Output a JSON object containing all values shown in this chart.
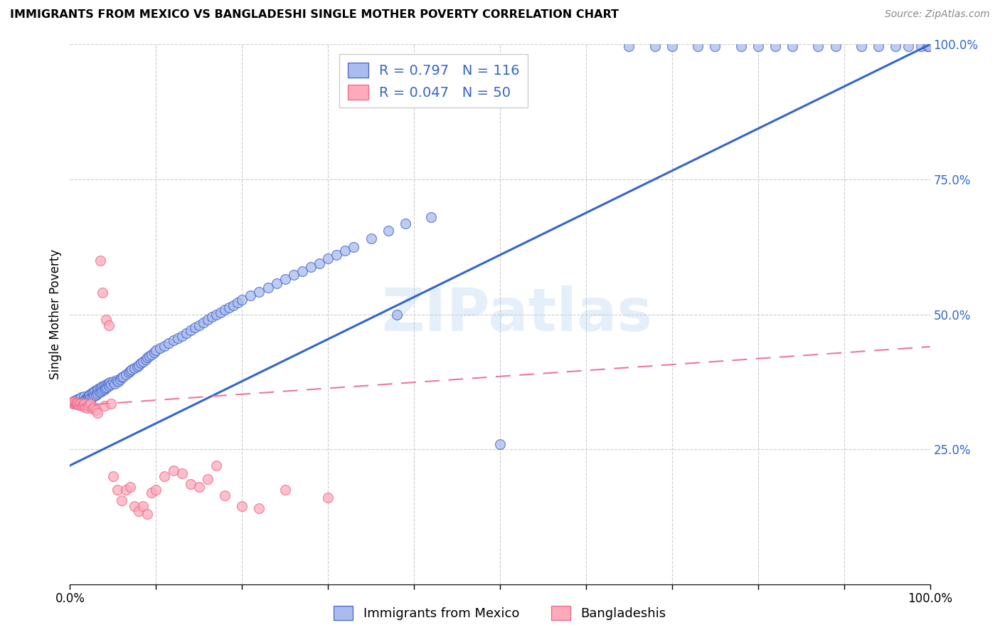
{
  "title": "IMMIGRANTS FROM MEXICO VS BANGLADESHI SINGLE MOTHER POVERTY CORRELATION CHART",
  "source": "Source: ZipAtlas.com",
  "ylabel": "Single Mother Poverty",
  "legend_label1": "Immigrants from Mexico",
  "legend_label2": "Bangladeshis",
  "blue_fill": "#AABBEE",
  "blue_edge": "#4466CC",
  "pink_fill": "#FFAABB",
  "pink_edge": "#EE6688",
  "line_blue": "#3366CC",
  "line_pink": "#EE7799",
  "watermark": "ZIPatlas",
  "R_blue": 0.797,
  "N_blue": 116,
  "R_pink": 0.047,
  "N_pink": 50,
  "blue_x": [
    0.005,
    0.008,
    0.01,
    0.012,
    0.013,
    0.015,
    0.016,
    0.018,
    0.019,
    0.02,
    0.021,
    0.022,
    0.023,
    0.024,
    0.025,
    0.026,
    0.027,
    0.028,
    0.029,
    0.03,
    0.031,
    0.032,
    0.033,
    0.034,
    0.035,
    0.036,
    0.037,
    0.038,
    0.039,
    0.04,
    0.041,
    0.042,
    0.043,
    0.044,
    0.045,
    0.046,
    0.048,
    0.05,
    0.052,
    0.054,
    0.056,
    0.058,
    0.06,
    0.062,
    0.065,
    0.068,
    0.07,
    0.072,
    0.075,
    0.078,
    0.08,
    0.082,
    0.085,
    0.088,
    0.09,
    0.092,
    0.095,
    0.098,
    0.1,
    0.105,
    0.11,
    0.115,
    0.12,
    0.125,
    0.13,
    0.135,
    0.14,
    0.145,
    0.15,
    0.155,
    0.16,
    0.165,
    0.17,
    0.175,
    0.18,
    0.185,
    0.19,
    0.195,
    0.2,
    0.21,
    0.22,
    0.23,
    0.24,
    0.25,
    0.26,
    0.27,
    0.28,
    0.29,
    0.3,
    0.31,
    0.32,
    0.33,
    0.35,
    0.37,
    0.39,
    0.42,
    0.38,
    0.5,
    0.65,
    0.68,
    0.7,
    0.73,
    0.75,
    0.78,
    0.8,
    0.82,
    0.84,
    0.87,
    0.89,
    0.92,
    0.94,
    0.96,
    0.975,
    0.99,
    0.997,
    0.999
  ],
  "blue_y": [
    0.34,
    0.342,
    0.344,
    0.338,
    0.346,
    0.34,
    0.348,
    0.342,
    0.344,
    0.346,
    0.348,
    0.35,
    0.352,
    0.345,
    0.354,
    0.347,
    0.356,
    0.349,
    0.358,
    0.351,
    0.36,
    0.353,
    0.362,
    0.355,
    0.364,
    0.357,
    0.366,
    0.359,
    0.368,
    0.361,
    0.363,
    0.37,
    0.365,
    0.372,
    0.367,
    0.374,
    0.37,
    0.376,
    0.372,
    0.378,
    0.375,
    0.38,
    0.383,
    0.385,
    0.388,
    0.392,
    0.395,
    0.398,
    0.4,
    0.403,
    0.406,
    0.41,
    0.413,
    0.416,
    0.42,
    0.423,
    0.426,
    0.43,
    0.433,
    0.438,
    0.442,
    0.447,
    0.452,
    0.456,
    0.46,
    0.465,
    0.47,
    0.475,
    0.48,
    0.485,
    0.49,
    0.495,
    0.5,
    0.504,
    0.508,
    0.513,
    0.517,
    0.522,
    0.527,
    0.535,
    0.542,
    0.55,
    0.558,
    0.565,
    0.573,
    0.58,
    0.588,
    0.595,
    0.603,
    0.61,
    0.618,
    0.625,
    0.64,
    0.655,
    0.668,
    0.68,
    0.5,
    0.26,
    0.997,
    0.997,
    0.997,
    0.997,
    0.997,
    0.997,
    0.997,
    0.997,
    0.997,
    0.997,
    0.997,
    0.997,
    0.997,
    0.997,
    0.997,
    0.997,
    0.997,
    0.997
  ],
  "pink_x": [
    0.002,
    0.003,
    0.004,
    0.005,
    0.006,
    0.007,
    0.008,
    0.009,
    0.01,
    0.012,
    0.014,
    0.015,
    0.016,
    0.018,
    0.02,
    0.022,
    0.024,
    0.026,
    0.028,
    0.03,
    0.032,
    0.035,
    0.038,
    0.04,
    0.042,
    0.045,
    0.048,
    0.05,
    0.055,
    0.06,
    0.065,
    0.07,
    0.075,
    0.08,
    0.085,
    0.09,
    0.095,
    0.1,
    0.11,
    0.12,
    0.13,
    0.14,
    0.15,
    0.16,
    0.17,
    0.18,
    0.2,
    0.22,
    0.25,
    0.3
  ],
  "pink_y": [
    0.336,
    0.338,
    0.335,
    0.337,
    0.334,
    0.336,
    0.333,
    0.335,
    0.332,
    0.334,
    0.33,
    0.332,
    0.335,
    0.328,
    0.326,
    0.33,
    0.335,
    0.325,
    0.328,
    0.322,
    0.318,
    0.6,
    0.54,
    0.33,
    0.49,
    0.48,
    0.335,
    0.2,
    0.175,
    0.155,
    0.175,
    0.18,
    0.145,
    0.135,
    0.145,
    0.13,
    0.17,
    0.175,
    0.2,
    0.21,
    0.205,
    0.185,
    0.18,
    0.195,
    0.22,
    0.165,
    0.145,
    0.14,
    0.175,
    0.16
  ],
  "blue_line_x0": 0.0,
  "blue_line_y0": 0.22,
  "blue_line_x1": 1.0,
  "blue_line_y1": 1.0,
  "pink_line_x0": 0.0,
  "pink_line_y0": 0.33,
  "pink_line_x1": 1.0,
  "pink_line_y1": 0.44,
  "xmin": 0.0,
  "xmax": 1.0,
  "ymin": 0.0,
  "ymax": 1.0
}
